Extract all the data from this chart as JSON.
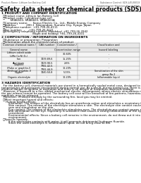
{
  "background_color": "#ffffff",
  "page_header_left": "Product Name: Lithium Ion Battery Cell",
  "page_header_right": "Substance Control: SDS-LIB-0001S\nEstablishment / Revision: Dec.7,2016",
  "title": "Safety data sheet for chemical products (SDS)",
  "section1_title": "1 PRODUCT AND COMPANY IDENTIFICATION",
  "section1_lines": [
    "  ・Product name: Lithium Ion Battery Cell",
    "  ・Product code: Cylindrical-type cell",
    "          SRI86500, SRI86600, SRI86500A",
    "  ・Company name:      Sanyo Electric Co., Ltd., Mobile Energy Company",
    "  ・Address:           200-1  Kannondani, Sumoto City, Hyogo, Japan",
    "  ・Telephone number:  +81-799-26-4111",
    "  ・Fax number:        +81-799-26-4121",
    "  ・Emergency telephone number (Weekday) +81-799-26-3942",
    "                                   (Night and holiday) +81-799-26-4101"
  ],
  "section2_title": "2 COMPOSITION / INFORMATION ON INGREDIENTS",
  "section2_sub": "  ・Substance or preparation: Preparation",
  "section2_sub2": "  ・Information about the chemical nature of product",
  "table_headers": [
    "Common chemical name /",
    "CAS number",
    "Concentration /",
    "Classification and"
  ],
  "table_headers2": [
    "General name",
    "",
    "Concentration range",
    "hazard labeling"
  ],
  "table_rows": [
    [
      "Lithium cobalt oxide\n(LiMn·Co·Ni·O₂)",
      "-",
      "30-60%",
      "-"
    ],
    [
      "Iron",
      "7439-89-6",
      "15-25%",
      "-"
    ],
    [
      "Aluminum",
      "7429-90-5",
      "2-6%",
      "-"
    ],
    [
      "Graphite\n(Flake or graphite-I)\n(Artificial graphite-I)",
      "7782-42-5\n7782-44-9",
      "10-20%",
      "-"
    ],
    [
      "Copper",
      "7440-50-8",
      "5-15%",
      "Sensitization of the skin\ngroup No.2"
    ],
    [
      "Organic electrolyte",
      "-",
      "10-20%",
      "Inflammable liquid"
    ]
  ],
  "section3_title": "3 HAZARDS IDENTIFICATION",
  "section3_body": [
    "  For the battery cell, chemical materials are stored in a hermetically sealed metal case, designed to withstand",
    "temperatures and pressures encountered during normal use. As a result, during normal use, there is no",
    "physical danger of ignition or aspiration and there is no danger of hazardous materials leakage.",
    "  However, if exposed to a fire, added mechanical shocks, decomposed, where electric stimulations may cause,",
    "the gas release cannot be operated. The battery cell case will be breached of fire-patterns, hazardous",
    "materials may be released.",
    "  Moreover, if heated strongly by the surrounding fire, local gas may be emitted."
  ],
  "section3_bullet1": "  ・Most important hazard and effects:",
  "section3_human": "     Human health effects:",
  "section3_human_lines": [
    "        Inhalation: The release of the electrolyte has an anesthesia action and stimulates a respiratory tract.",
    "        Skin contact: The release of the electrolyte stimulates a skin. The electrolyte skin contact causes a",
    "        sore and stimulation on the skin.",
    "        Eye contact: The release of the electrolyte stimulates eyes. The electrolyte eye contact causes a sore",
    "        and stimulation on the eye. Especially, a substance that causes a strong inflammation of the eyes is",
    "        considered.",
    "        Environmental effects: Since a battery cell remains in the environment, do not throw out it into the",
    "        environment."
  ],
  "section3_specific": "  ・Specific hazards:",
  "section3_specific_lines": [
    "        If the electrolyte contacts with water, it will generate detrimental hydrogen fluoride.",
    "        Since the used electrolyte is inflammable liquid, do not bring close to fire."
  ],
  "title_fontsize": 5.5,
  "body_fontsize": 2.8,
  "header_fontsize": 2.3,
  "section_title_fontsize": 3.2,
  "table_fontsize": 2.5
}
